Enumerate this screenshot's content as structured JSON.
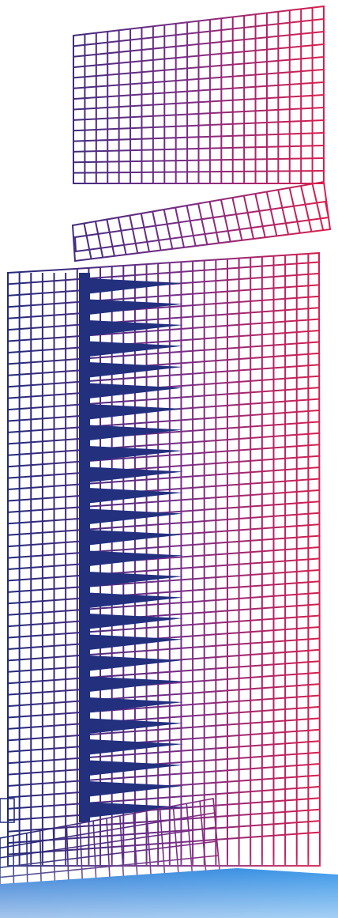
{
  "illustration": {
    "subject": "wireframe-tower",
    "colors": {
      "left": "#1f2a7a",
      "middle": "#7a2d86",
      "right": "#e11d48",
      "blue_band_left": "#1e6fd0",
      "blue_band_right": "#1e88e5",
      "background": "#ffffff"
    }
  }
}
